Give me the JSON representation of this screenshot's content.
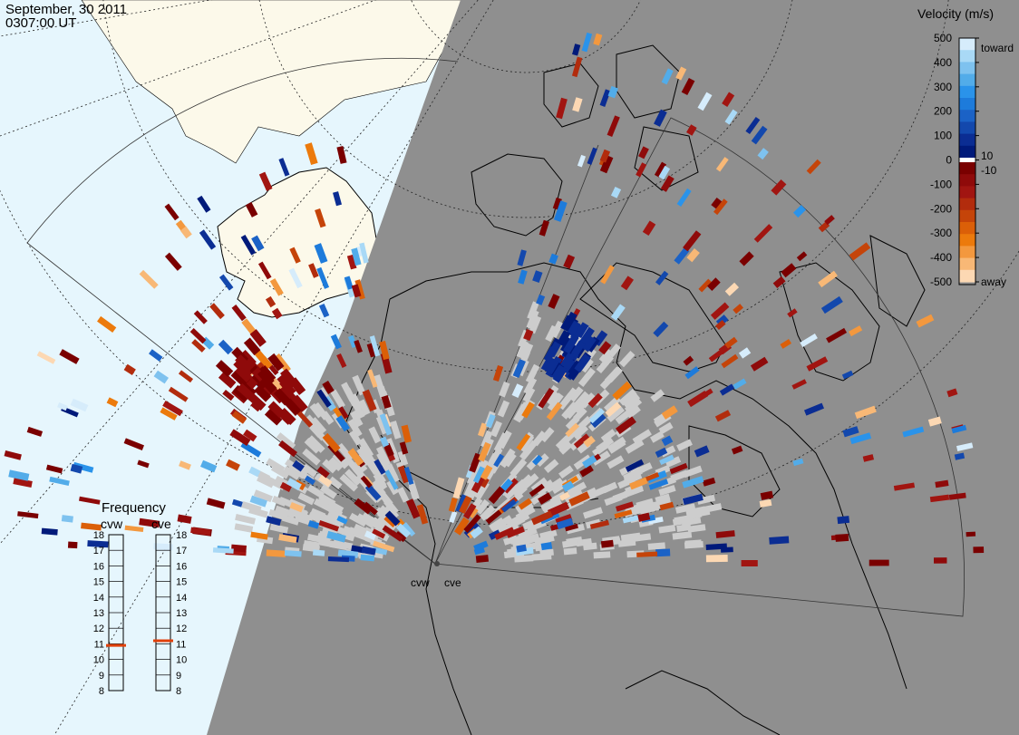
{
  "header": {
    "date": "September, 30 2011",
    "time": "0307:00 UT"
  },
  "colors": {
    "ocean": "#e6f6fd",
    "land": "#fcf9ea",
    "night": "#8f8f8f",
    "ground_scatter": "#cdcdcd"
  },
  "velocity_scale": {
    "title": "Velocity (m/s)",
    "ticks": [
      "500",
      "400",
      "300",
      "200",
      "100",
      "0",
      "-100",
      "-200",
      "-300",
      "-400",
      "-500"
    ],
    "near_zero": [
      "10",
      "-10"
    ],
    "toward_label": "toward",
    "away_label": "away",
    "toward_colors": [
      "#001a7a",
      "#0b2d93",
      "#1348ad",
      "#1b62c6",
      "#1d7bdb",
      "#2a93ea",
      "#52ace9",
      "#7ec2ef",
      "#a9d9f6",
      "#d6ecfb"
    ],
    "away_colors": [
      "#7a0000",
      "#8f0a0a",
      "#a11511",
      "#b22c0d",
      "#c54409",
      "#db5f08",
      "#ec7a0c",
      "#f3983e",
      "#f8b876",
      "#fcd8b3"
    ]
  },
  "frequency_panel": {
    "title": "Frequency",
    "radars": [
      {
        "name": "cvw",
        "freq_mhz": 10.9
      },
      {
        "name": "cve",
        "freq_mhz": 11.2
      }
    ],
    "scale": [
      "18",
      "17",
      "16",
      "15",
      "14",
      "13",
      "12",
      "11",
      "10",
      "9",
      "8"
    ]
  },
  "radar_sites": [
    {
      "name": "cvw"
    },
    {
      "name": "cve"
    }
  ]
}
